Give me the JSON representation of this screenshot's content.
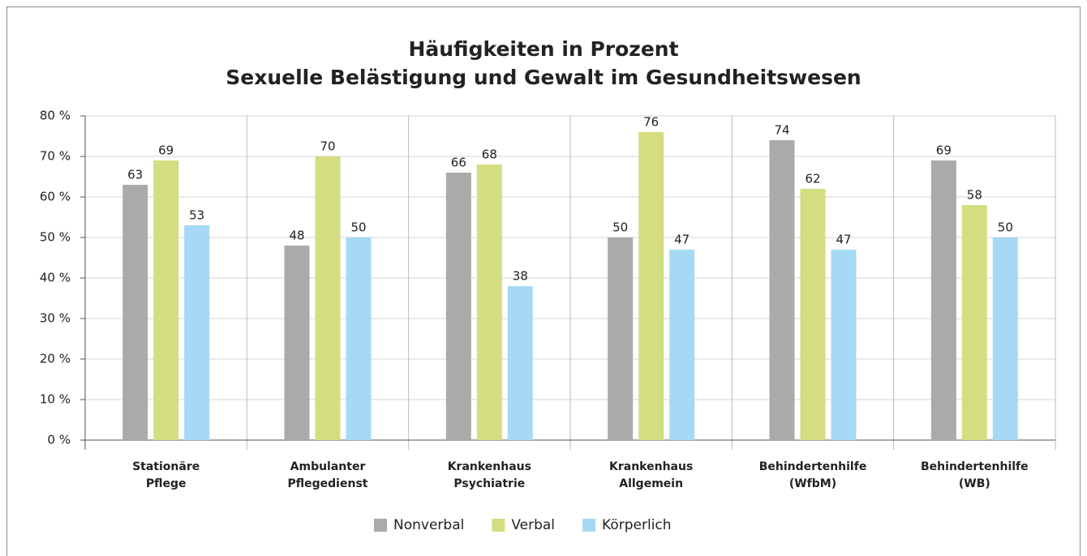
{
  "chart_data": {
    "type": "bar",
    "title": "Häufigkeiten in Prozent",
    "subtitle": "Sexuelle Belästigung und Gewalt im Gesundheitswesen",
    "categories": [
      "Stationäre\nPflege",
      "Ambulanter\nPflegedienst",
      "Krankenhaus\nPsychiatrie",
      "Krankenhaus\nAllgemein",
      "Behindertenhilfe\n(WfbM)",
      "Behindertenhilfe\n(WB)"
    ],
    "series": [
      {
        "name": "Nonverbal",
        "color": "#aaaaaa",
        "values": [
          63,
          48,
          66,
          50,
          74,
          69
        ]
      },
      {
        "name": "Verbal",
        "color": "#d4dd80",
        "values": [
          69,
          70,
          68,
          76,
          62,
          58
        ]
      },
      {
        "name": "Körperlich",
        "color": "#a6d9f5",
        "values": [
          53,
          50,
          38,
          47,
          47,
          50
        ]
      }
    ],
    "ylim": [
      0,
      80
    ],
    "yticks": [
      {
        "value": 0,
        "label": "0 %"
      },
      {
        "value": 10,
        "label": "10 %"
      },
      {
        "value": 20,
        "label": "20 %"
      },
      {
        "value": 30,
        "label": "30 %"
      },
      {
        "value": 40,
        "label": "40 %"
      },
      {
        "value": 50,
        "label": "50 %"
      },
      {
        "value": 60,
        "label": "60 %"
      },
      {
        "value": 70,
        "label": "70 %"
      },
      {
        "value": 80,
        "label": "80 %"
      }
    ],
    "grid": true,
    "legend": "bottom"
  }
}
